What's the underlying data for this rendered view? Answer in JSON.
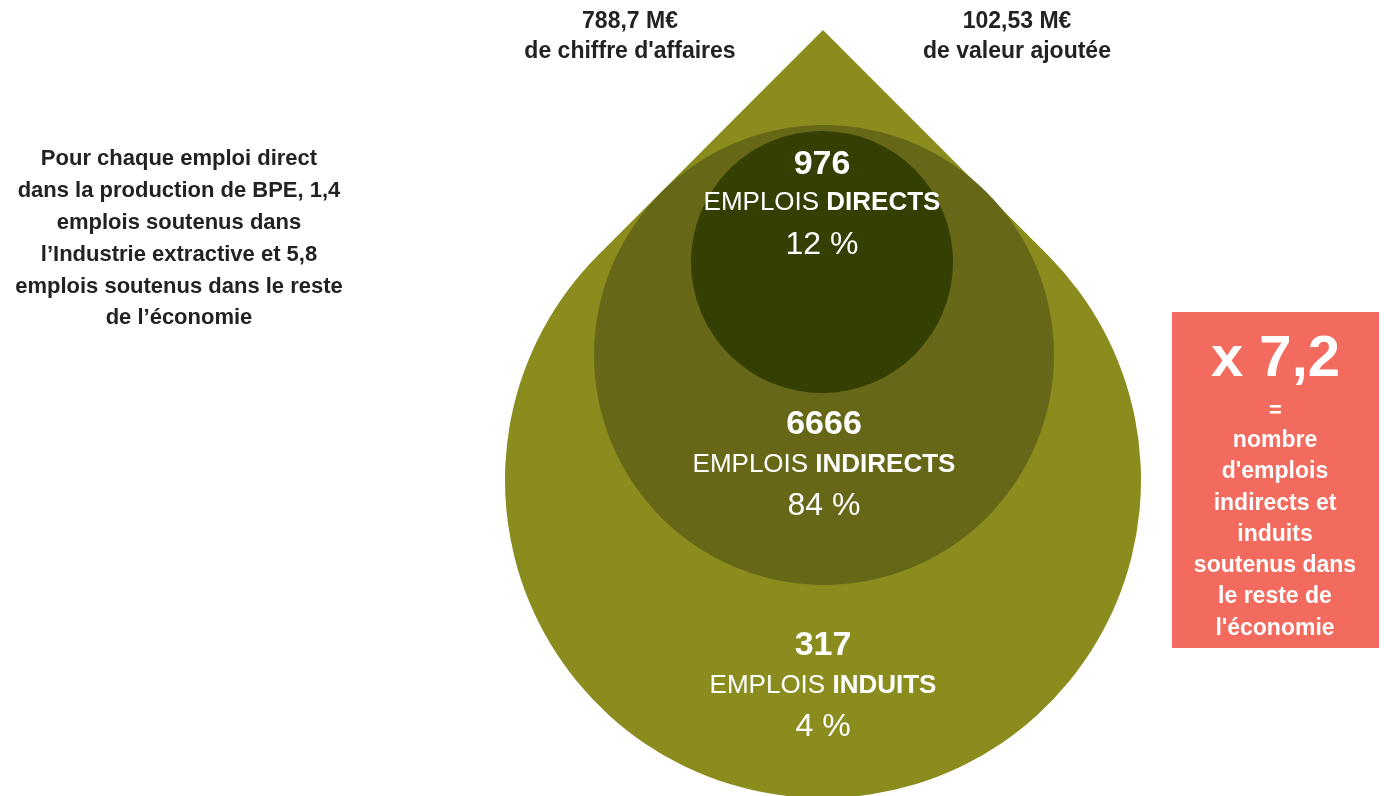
{
  "chart_data": {
    "type": "other",
    "categories": [
      "EMPLOIS DIRECTS",
      "EMPLOIS INDIRECTS",
      "EMPLOIS INDUITS"
    ],
    "values": [
      12,
      84,
      4
    ],
    "value_labels": [
      "12 %",
      "84 %",
      "4 %"
    ],
    "colors": [
      "#333f03",
      "#666818",
      "#8a8c1e"
    ],
    "annotations": [
      "788,7 M€\nde chiffre d'affaires",
      "102,53 M€\nde valeur ajoutée",
      "Pour chaque emploi direct dans la production de BPE, 1,4 emplois soutenus dans l’Industrie extractive et 5,8 emplois soutenus dans le reste de l’économie",
      "x 7,2",
      "=",
      "nombre d'emplois indirects et induits soutenus dans le reste de l'économie",
      "976",
      "6666",
      "317"
    ]
  }
}
